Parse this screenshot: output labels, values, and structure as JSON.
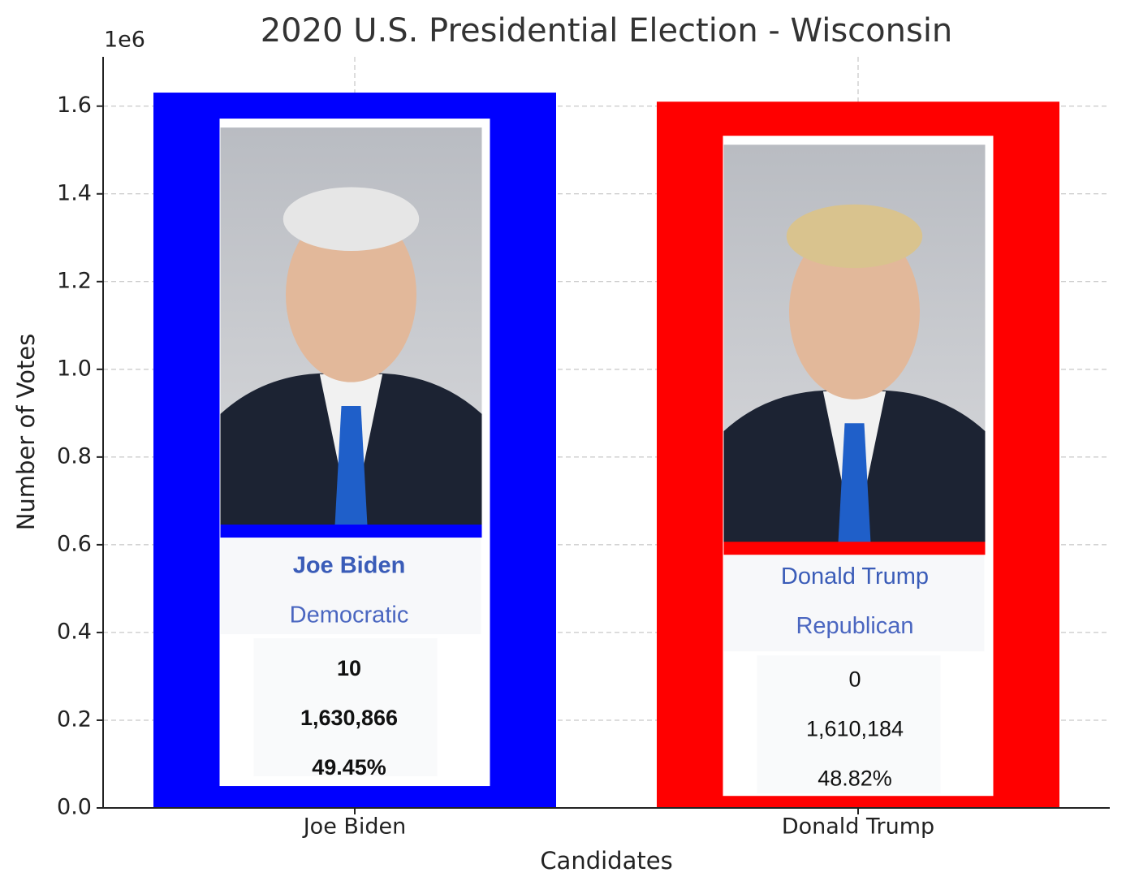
{
  "chart_data": {
    "type": "bar",
    "title": "2020 U.S. Presidential Election - Wisconsin",
    "x_label": "Candidates",
    "y_label": "Number of Votes",
    "offset_label": "1e6",
    "categories": [
      "Joe Biden",
      "Donald Trump"
    ],
    "values": [
      1630866,
      1610184
    ],
    "value_labels": [
      "1,630,866",
      "1,610,184"
    ],
    "colors": [
      "#0000ff",
      "#ff0000"
    ],
    "ylim": [
      0,
      1712409
    ],
    "yticks": [
      {
        "value": 0,
        "label": "0.0"
      },
      {
        "value": 200000,
        "label": "0.2"
      },
      {
        "value": 400000,
        "label": "0.4"
      },
      {
        "value": 600000,
        "label": "0.6"
      },
      {
        "value": 800000,
        "label": "0.8"
      },
      {
        "value": 1000000,
        "label": "1.0"
      },
      {
        "value": 1200000,
        "label": "1.2"
      },
      {
        "value": 1400000,
        "label": "1.4"
      },
      {
        "value": 1600000,
        "label": "1.6"
      }
    ],
    "grid": true,
    "cards": [
      {
        "party": "Democratic",
        "electoral_votes": 10,
        "percent_label": "49.45%"
      },
      {
        "party": "Republican",
        "electoral_votes": 0,
        "percent_label": "48.82%"
      }
    ]
  }
}
